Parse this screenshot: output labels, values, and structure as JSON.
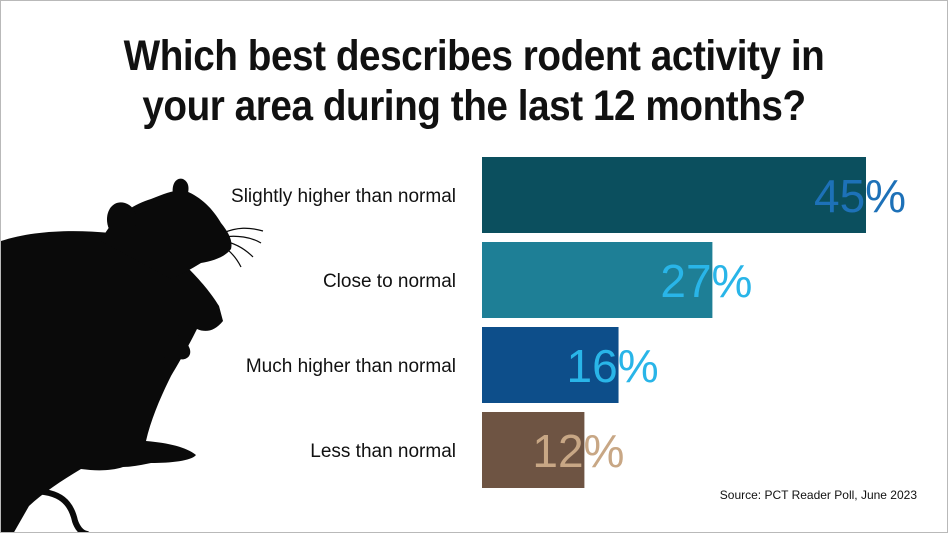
{
  "title_lines": [
    "Which best describes rodent activity in",
    "your area during the last 12 months?"
  ],
  "source": "Source: PCT Reader Poll, June 2023",
  "illustration": "rat-silhouette",
  "chart_data": {
    "type": "bar",
    "orientation": "horizontal",
    "categories": [
      "Slightly higher than normal",
      "Close to normal",
      "Much higher than normal",
      "Less than normal"
    ],
    "values": [
      45,
      27,
      16,
      12
    ],
    "value_labels": [
      "45%",
      "27%",
      "16%",
      "12%"
    ],
    "unit": "%",
    "xlim": [
      0,
      45
    ],
    "grid": false,
    "legend": "none",
    "bar_colors": [
      "#0b4f5e",
      "#1e7f96",
      "#0d4e8a",
      "#6e5443"
    ],
    "label_colors": [
      "#1d71b8",
      "#29b5e8",
      "#29b5e8",
      "#c8a785"
    ]
  }
}
